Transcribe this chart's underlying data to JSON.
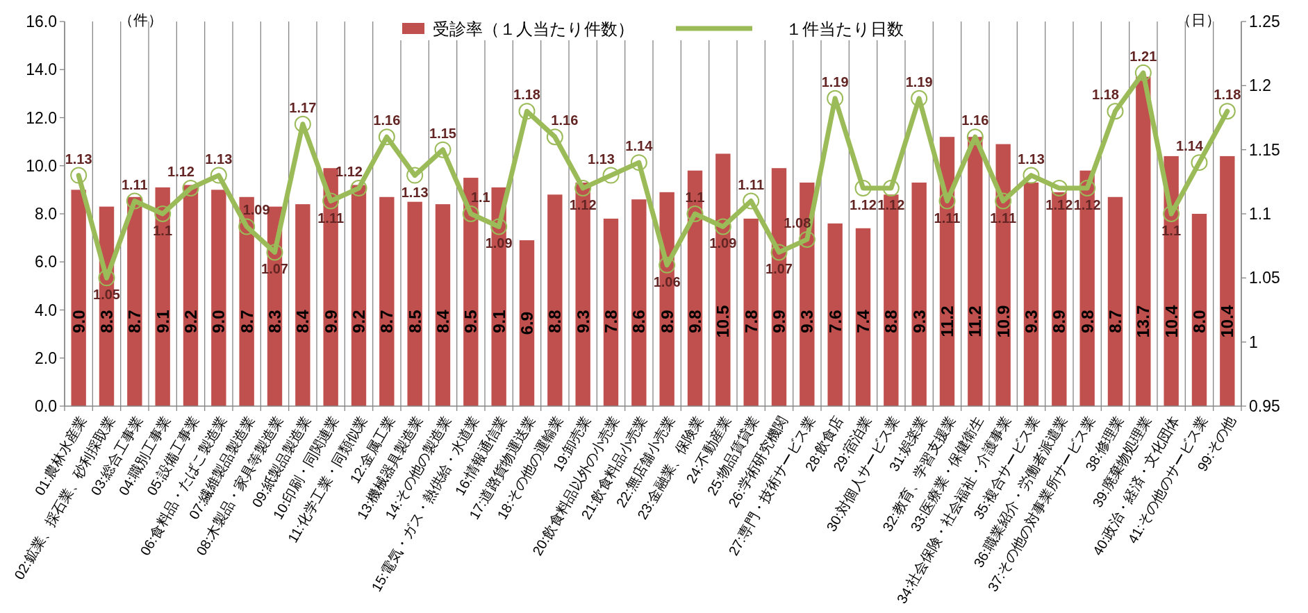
{
  "chart_data": {
    "type": "bar",
    "categories": [
      "01:農林水産業",
      "02:鉱業、採石業、砂利採取業",
      "03:総合工事業",
      "04:職別工事業",
      "05:設備工事業",
      "06:食料品・たばこ製造業",
      "07:繊維製品製造業",
      "08:木製品・家具等製造業",
      "09:紙製品製造業",
      "10:印刷・同関連業",
      "11:化学工業・同類似業",
      "12:金属工業",
      "13:機械器具製造業",
      "14:その他の製造業",
      "15:電気・ガス・熱供給・水道業",
      "16:情報通信業",
      "17:道路貨物運送業",
      "18:その他の運輸業",
      "19:卸売業",
      "20:飲食料品以外の小売業",
      "21:飲食料品小売業",
      "22:無店舗小売業",
      "23:金融業、保険業",
      "24:不動産業",
      "25:物品賃貸業",
      "26:学術研究機関",
      "27:専門・技術サービス業",
      "28:飲食店",
      "29:宿泊業",
      "30:対個人サービス業",
      "31:娯楽業",
      "32:教育、学習支援業",
      "33:医療業・保健衛生",
      "34:社会保険・社会福祉・介護事業",
      "35:複合サービス業",
      "36:職業紹介・労働者派遣業",
      "37:その他の対事業所サービス業",
      "38:修理業",
      "39:廃棄物処理業",
      "40:政治・経済・文化団体",
      "41:その他のサービス業",
      "99:その他"
    ],
    "ylabel": "（件）",
    "y2label": "（日）",
    "ylim": [
      0,
      16
    ],
    "yticks": [
      {
        "value": 0,
        "label": "0.0"
      },
      {
        "value": 2,
        "label": "2.0"
      },
      {
        "value": 4,
        "label": "4.0"
      },
      {
        "value": 6,
        "label": "6.0"
      },
      {
        "value": 8,
        "label": "8.0"
      },
      {
        "value": 10,
        "label": "10.0"
      },
      {
        "value": 12,
        "label": "12.0"
      },
      {
        "value": 14,
        "label": "14.0"
      },
      {
        "value": 16,
        "label": "16.0"
      }
    ],
    "y2lim": [
      0.95,
      1.25
    ],
    "y2ticks": [
      0.95,
      1,
      1.05,
      1.1,
      1.15,
      1.2,
      1.25
    ],
    "grid": "x",
    "legend": "top",
    "marker": "circle",
    "series": [
      {
        "name": "受診率（１人当たり件数）",
        "type": "bar",
        "color": "#c0504d",
        "values": [
          9.0,
          8.3,
          8.7,
          9.1,
          9.2,
          9.0,
          8.7,
          8.3,
          8.4,
          9.9,
          9.2,
          8.7,
          8.5,
          8.4,
          9.5,
          9.1,
          6.9,
          8.8,
          9.3,
          7.8,
          8.6,
          8.9,
          9.8,
          10.5,
          7.8,
          9.9,
          9.3,
          7.6,
          7.4,
          8.8,
          9.3,
          11.2,
          11.2,
          10.9,
          9.3,
          8.9,
          9.8,
          8.7,
          13.7,
          10.4,
          8.0,
          10.4
        ],
        "value_labels": [
          "9.0",
          "8.3",
          "8.7",
          "9.1",
          "9.2",
          "9.0",
          "8.7",
          "8.3",
          "8.4",
          "9.9",
          "9.2",
          "8.7",
          "8.5",
          "8.4",
          "9.5",
          "9.1",
          "6.9",
          "8.8",
          "9.3",
          "7.8",
          "8.6",
          "8.9",
          "9.8",
          "10.5",
          "7.8",
          "9.9",
          "9.3",
          "7.6",
          "7.4",
          "8.8",
          "9.3",
          "11.2",
          "11.2",
          "10.9",
          "9.3",
          "8.9",
          "9.8",
          "8.7",
          "13.7",
          "10.4",
          "8.0",
          "10.4"
        ]
      },
      {
        "name": "１件当たり日数",
        "type": "line",
        "axis": "y2",
        "color": "#9bbb59",
        "values": [
          1.13,
          1.05,
          1.11,
          1.1,
          1.12,
          1.13,
          1.09,
          1.07,
          1.17,
          1.11,
          1.12,
          1.16,
          1.13,
          1.15,
          1.1,
          1.09,
          1.18,
          1.16,
          1.12,
          1.13,
          1.14,
          1.06,
          1.1,
          1.09,
          1.11,
          1.07,
          1.08,
          1.19,
          1.12,
          1.12,
          1.19,
          1.11,
          1.16,
          1.11,
          1.13,
          1.12,
          1.12,
          1.18,
          1.21,
          1.1,
          1.14,
          1.18
        ],
        "value_labels": [
          "1.13",
          "1.05",
          "1.11",
          "1.1",
          "1.12",
          "1.13",
          "1.09",
          "1.07",
          "1.17",
          "1.11",
          "1.12",
          "1.16",
          "1.13",
          "1.15",
          "1.1",
          "1.09",
          "1.18",
          "1.16",
          "1.12",
          "1.13",
          "1.14",
          "1.06",
          "1.1",
          "1.09",
          "1.11",
          "1.07",
          "1.08",
          "1.19",
          "1.12",
          "1.12",
          "1.19",
          "1.11",
          "1.16",
          "1.11",
          "1.13",
          "1.12",
          "1.12",
          "1.18",
          "1.21",
          "1.1",
          "1.14",
          "1.18"
        ]
      }
    ]
  }
}
